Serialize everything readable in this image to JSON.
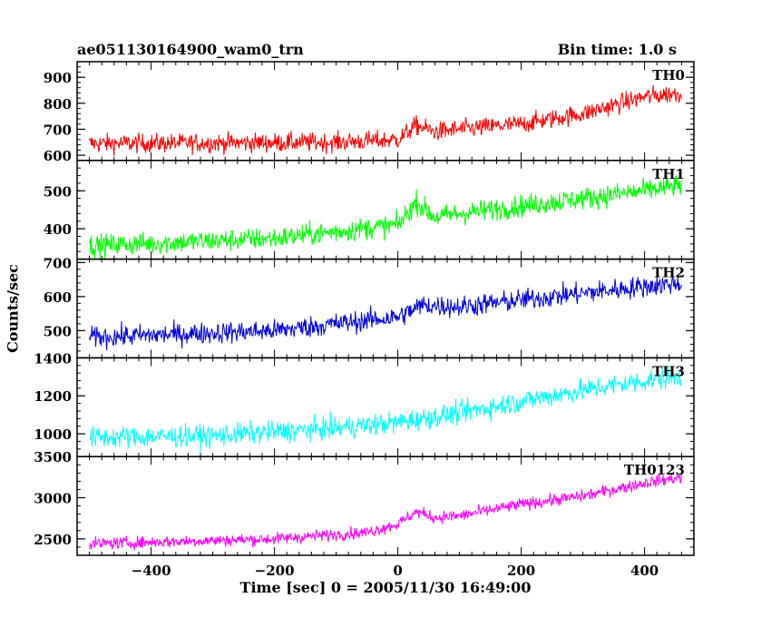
{
  "header": {
    "title": "ae051130164900_wam0_trn",
    "bin_time": "Bin time: 1.0 s"
  },
  "chart_data": {
    "type": "line",
    "xlabel": "Time [sec] 0 = 2005/11/30 16:49:00",
    "ylabel": "Counts/sec",
    "xlim": [
      -520,
      480
    ],
    "xticks": [
      -400,
      -200,
      0,
      200,
      400
    ],
    "x_start": -500,
    "x_end": 460,
    "bin": 1.0,
    "panels": [
      {
        "name": "TH0",
        "color": "#ff0000",
        "ylim": [
          580,
          960
        ],
        "yticks": [
          600,
          700,
          800,
          900
        ],
        "trend": [
          [
            -500,
            645
          ],
          [
            -100,
            650
          ],
          [
            0,
            660
          ],
          [
            30,
            715
          ],
          [
            60,
            690
          ],
          [
            100,
            700
          ],
          [
            200,
            720
          ],
          [
            300,
            760
          ],
          [
            400,
            825
          ],
          [
            460,
            840
          ]
        ],
        "noise": 35
      },
      {
        "name": "TH1",
        "color": "#00ff00",
        "ylim": [
          320,
          580
        ],
        "yticks": [
          400,
          500
        ],
        "trend": [
          [
            -500,
            355
          ],
          [
            -200,
            375
          ],
          [
            0,
            410
          ],
          [
            30,
            470
          ],
          [
            60,
            430
          ],
          [
            100,
            440
          ],
          [
            200,
            460
          ],
          [
            300,
            480
          ],
          [
            400,
            500
          ],
          [
            460,
            515
          ]
        ],
        "noise": 28
      },
      {
        "name": "TH2",
        "color": "#0000dd",
        "ylim": [
          420,
          710
        ],
        "yticks": [
          500,
          600,
          700
        ],
        "trend": [
          [
            -500,
            480
          ],
          [
            -200,
            500
          ],
          [
            0,
            540
          ],
          [
            40,
            575
          ],
          [
            100,
            570
          ],
          [
            200,
            590
          ],
          [
            300,
            610
          ],
          [
            400,
            630
          ],
          [
            460,
            640
          ]
        ],
        "noise": 30
      },
      {
        "name": "TH3",
        "color": "#00ffff",
        "ylim": [
          880,
          1400
        ],
        "yticks": [
          1000,
          1200,
          1400
        ],
        "trend": [
          [
            -500,
            980
          ],
          [
            -300,
            990
          ],
          [
            -100,
            1030
          ],
          [
            0,
            1060
          ],
          [
            100,
            1110
          ],
          [
            200,
            1170
          ],
          [
            300,
            1230
          ],
          [
            400,
            1280
          ],
          [
            460,
            1300
          ]
        ],
        "noise": 55
      },
      {
        "name": "TH0123",
        "color": "#ff00ff",
        "ylim": [
          2300,
          3500
        ],
        "yticks": [
          2500,
          3000,
          3500
        ],
        "trend": [
          [
            -500,
            2440
          ],
          [
            -200,
            2500
          ],
          [
            -50,
            2580
          ],
          [
            0,
            2680
          ],
          [
            30,
            2830
          ],
          [
            60,
            2760
          ],
          [
            100,
            2780
          ],
          [
            200,
            2920
          ],
          [
            300,
            3020
          ],
          [
            400,
            3180
          ],
          [
            460,
            3250
          ]
        ],
        "noise": 70
      }
    ]
  }
}
